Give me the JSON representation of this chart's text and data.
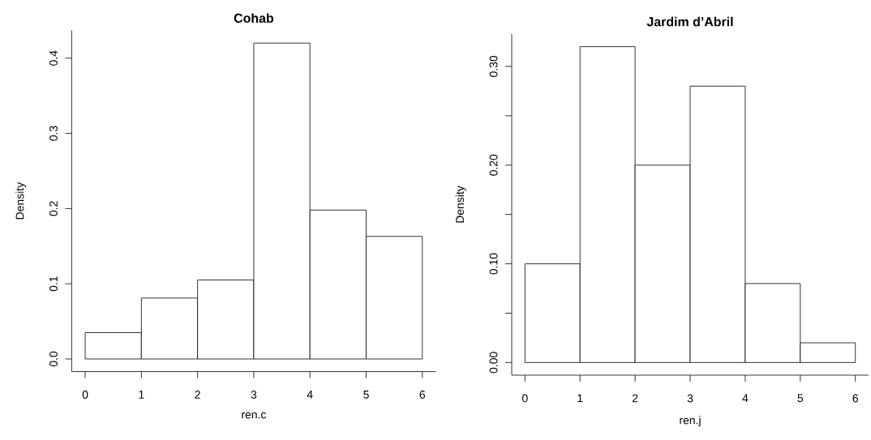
{
  "chart_data": [
    {
      "type": "histogram",
      "title": "Cohab",
      "xlabel": "ren.c",
      "ylabel": "Density",
      "bins": [
        0,
        1,
        2,
        3,
        4,
        5,
        6
      ],
      "values": [
        0.035,
        0.081,
        0.105,
        0.42,
        0.198,
        0.163
      ],
      "color": "#ffffff",
      "xlim": [
        -0.24,
        6.24
      ],
      "ylim": [
        -0.0168,
        0.4368
      ],
      "xticks": [
        0,
        1,
        2,
        3,
        4,
        5,
        6
      ],
      "yticks": [
        {
          "value": 0,
          "label": "0.0"
        },
        {
          "value": 0.1,
          "label": "0.1"
        },
        {
          "value": 0.2,
          "label": "0.2"
        },
        {
          "value": 0.3,
          "label": "0.3"
        },
        {
          "value": 0.4,
          "label": "0.4"
        }
      ]
    },
    {
      "type": "histogram",
      "title": "Jardim d’Abril",
      "xlabel": "ren.j",
      "ylabel": "Density",
      "bins": [
        0,
        1,
        2,
        3,
        4,
        5,
        6
      ],
      "values": [
        0.1,
        0.32,
        0.2,
        0.28,
        0.08,
        0.02
      ],
      "color": "#ffffff",
      "xlim": [
        -0.24,
        6.24
      ],
      "ylim": [
        -0.0128,
        0.3328
      ],
      "xticks": [
        0,
        1,
        2,
        3,
        4,
        5,
        6
      ],
      "yticks": [
        {
          "value": 0,
          "label": "0.00"
        },
        {
          "value": 0.05,
          "label": null
        },
        {
          "value": 0.1,
          "label": "0.10"
        },
        {
          "value": 0.15,
          "label": null
        },
        {
          "value": 0.2,
          "label": "0.20"
        },
        {
          "value": 0.25,
          "label": null
        },
        {
          "value": 0.3,
          "label": "0.30"
        }
      ]
    }
  ]
}
